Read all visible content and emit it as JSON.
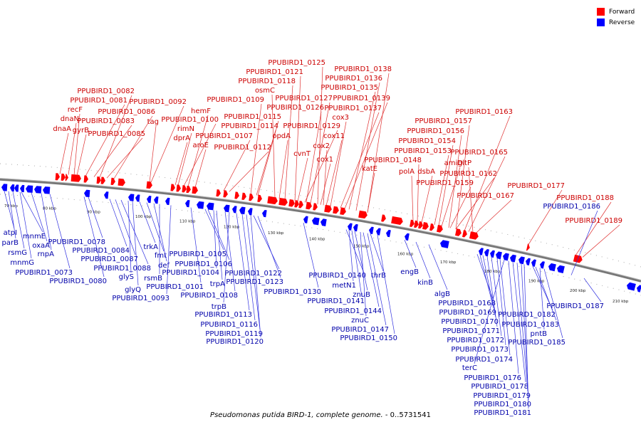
{
  "legend": [
    {
      "label": "Forward",
      "color": "#ff0000"
    },
    {
      "label": "Reverse",
      "color": "#0000ff"
    }
  ],
  "caption": {
    "organism": "Pseudomonas putida BIRD-1, complete genome.",
    "range": " - 0..5731541"
  },
  "ticks": [
    "70 kbp",
    "80 kbp",
    "90 kbp",
    "100 kbp",
    "110 kbp",
    "120 kbp",
    "130 kbp",
    "140 kbp",
    "150 kbp",
    "160 kbp",
    "170 kbp",
    "180 kbp",
    "190 kbp",
    "200 kbp",
    "210 kbp"
  ],
  "forward_labels": [
    "PPUBIRD1_0082",
    "PPUBIRD1_0081",
    "recF",
    "dnaN",
    "PPUBIRD1_0086",
    "PPUBIRD1_0083",
    "gyrB",
    "dnaA",
    "PPUBIRD1_0085",
    "PPUBIRD1_0092",
    "tag",
    "hemF",
    "PPUBIRD1_0100",
    "rimN",
    "dprA",
    "PPUBIRD1_0107",
    "aroE",
    "PPUBIRD1_0112",
    "PPUBIRD1_0125",
    "PPUBIRD1_0121",
    "PPUBIRD1_0118",
    "osmC",
    "PPUBIRD1_0109",
    "PPUBIRD1_0115",
    "PPUBIRD1_0114",
    "PPUBIRD1_0127",
    "PPUBIRD1_0126",
    "PPUBIRD1_0129",
    "opdA",
    "cvnT",
    "PPUBIRD1_0138",
    "PPUBIRD1_0136",
    "PPUBIRD1_0135",
    "PPUBIRD1_0139",
    "PPUBIRD1_0137",
    "cox3",
    "cox11",
    "cox2",
    "cox1",
    "katE",
    "PPUBIRD1_0157",
    "PPUBIRD1_0156",
    "PPUBIRD1_0154",
    "PPUBIRD1_0153",
    "PPUBIRD1_0148",
    "dsbA",
    "polA",
    "amiD",
    "PPUBIRD1_0162",
    "PPUBIRD1_0159",
    "PPUBIRD1_0163",
    "PPUBIRD1_0165",
    "gltP",
    "PPUBIRD1_0167",
    "PPUBIRD1_0177",
    "PPUBIRD1_0188",
    "PPUBIRD1_0189"
  ],
  "reverse_labels": [
    "mnmE",
    "atpI",
    "parB",
    "oxaA",
    "rnpA",
    "rsmG",
    "mnmG",
    "PPUBIRD1_0073",
    "PPUBIRD1_0078",
    "PPUBIRD1_0080",
    "PPUBIRD1_0084",
    "PPUBIRD1_0087",
    "PPUBIRD1_0088",
    "glyS",
    "glyQ",
    "trkA",
    "fmt",
    "def",
    "rsmB",
    "PPUBIRD1_0093",
    "PPUBIRD1_0101",
    "PPUBIRD1_0105",
    "PPUBIRD1_0106",
    "PPUBIRD1_0104",
    "trpA",
    "PPUBIRD1_0108",
    "trpB",
    "PPUBIRD1_0113",
    "PPUBIRD1_0116",
    "PPUBIRD1_0119",
    "PPUBIRD1_0120",
    "PPUBIRD1_0122",
    "PPUBIRD1_0123",
    "PPUBIRD1_0130",
    "PPUBIRD1_0140",
    "metN1",
    "PPUBIRD1_0141",
    "znuB",
    "thrB",
    "PPUBIRD1_0144",
    "znuC",
    "PPUBIRD1_0147",
    "PPUBIRD1_0150",
    "engB",
    "kinB",
    "algB",
    "PPUBIRD1_0168",
    "PPUBIRD1_0169",
    "PPUBIRD1_0170",
    "PPUBIRD1_0171",
    "PPUBIRD1_0172",
    "PPUBIRD1_0173",
    "PPUBIRD1_0174",
    "terC",
    "PPUBIRD1_0176",
    "PPUBIRD1_0178",
    "PPUBIRD1_0179",
    "PPUBIRD1_0180",
    "PPUBIRD1_0181",
    "PPUBIRD1_0182",
    "PPUBIRD1_0183",
    "pntB",
    "PPUBIRD1_0185",
    "PPUBIRD1_0186",
    "PPUBIRD1_0187"
  ]
}
